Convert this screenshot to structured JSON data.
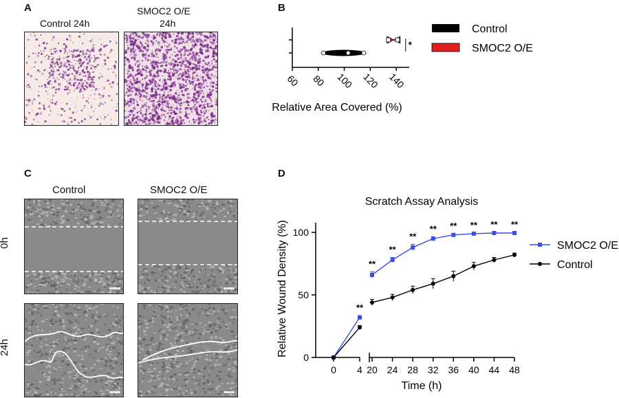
{
  "panels": {
    "a": {
      "letter": "A",
      "labels": [
        "Control 24h",
        "SMOC2 O/E",
        "24h"
      ]
    },
    "b": {
      "letter": "B"
    },
    "c": {
      "letter": "C",
      "col_labels": [
        "Control",
        "SMOC2 O/E"
      ],
      "row_labels": [
        "0h",
        "24h"
      ]
    },
    "d": {
      "letter": "D"
    }
  },
  "colors": {
    "control": "#000000",
    "smoc2": "#e02020",
    "smoc2_line": "#3b4fe0",
    "stain": "#7a2a8c"
  },
  "chart_data": [
    {
      "type": "violin",
      "xlabel": "Relative Area Covered (%)",
      "xlim": [
        60,
        150
      ],
      "xticks": [
        60,
        80,
        100,
        120,
        140
      ],
      "legend": [
        "Control",
        "SMOC2 O/E"
      ],
      "legend_position": "right",
      "annotation": "*",
      "series": [
        {
          "name": "Control",
          "points": [
            84,
            103,
            115
          ],
          "range": [
            82,
            117
          ]
        },
        {
          "name": "SMOC2 O/E",
          "points": [
            134,
            141
          ],
          "range": [
            133,
            143
          ]
        }
      ]
    },
    {
      "type": "line",
      "title": "Scratch Assay Analysis",
      "xlabel": "Time (h)",
      "ylabel": "Relative Wound Density (%)",
      "ylim": [
        0,
        105
      ],
      "yticks": [
        0,
        50,
        100
      ],
      "xticks": [
        0,
        4,
        20,
        24,
        28,
        32,
        36,
        40,
        44,
        48
      ],
      "x_axis_break": [
        4,
        20
      ],
      "legend_position": "right",
      "series": [
        {
          "name": "SMOC2 O/E",
          "x": [
            0,
            4,
            20,
            24,
            28,
            32,
            36,
            40,
            44,
            48
          ],
          "y": [
            0,
            32,
            66,
            78,
            88,
            95,
            98,
            99,
            99.5,
            99.5
          ],
          "err": [
            0,
            1.5,
            2.5,
            2,
            2.5,
            1.5,
            1,
            0.5,
            0.5,
            0.5
          ]
        },
        {
          "name": "Control",
          "x": [
            0,
            4,
            20,
            24,
            28,
            32,
            36,
            40,
            44,
            48
          ],
          "y": [
            0,
            24,
            44,
            48,
            54,
            59,
            65,
            73,
            78,
            82
          ],
          "err": [
            0,
            1.5,
            2.5,
            2.5,
            3,
            4,
            4,
            3,
            2,
            1.5
          ]
        }
      ],
      "significance": [
        "",
        "**",
        "**",
        "**",
        "**",
        "**",
        "**",
        "**",
        "**",
        "**"
      ]
    }
  ]
}
